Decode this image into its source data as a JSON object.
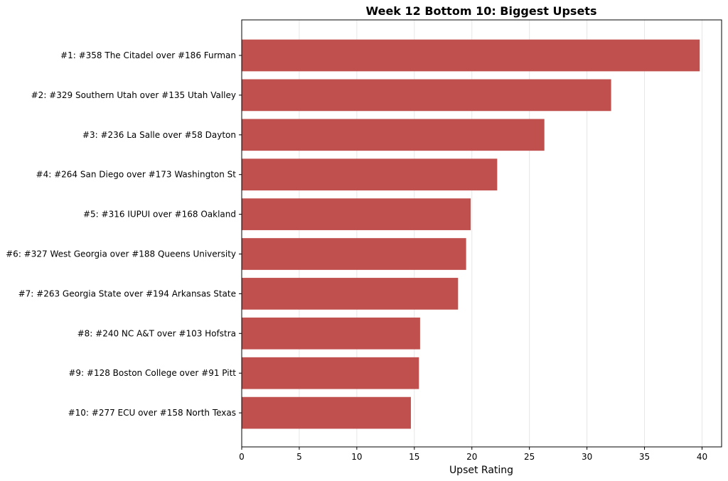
{
  "chart_data": {
    "type": "bar",
    "orientation": "horizontal",
    "title": "Week 12 Bottom 10: Biggest Upsets",
    "xlabel": "Upset Rating",
    "ylabel": "",
    "categories": [
      "#1: #358 The Citadel over #186 Furman",
      "#2: #329 Southern Utah over #135 Utah Valley",
      "#3: #236 La Salle over #58 Dayton",
      "#4: #264 San Diego over #173 Washington St",
      "#5: #316 IUPUI over #168 Oakland",
      "#6: #327 West Georgia over #188 Queens University",
      "#7: #263 Georgia State over #194 Arkansas State",
      "#8: #240 NC A&T over #103 Hofstra",
      "#9: #128 Boston College over #91 Pitt",
      "#10: #277 ECU over #158 North Texas"
    ],
    "values": [
      39.8,
      32.1,
      26.3,
      22.2,
      19.9,
      19.5,
      18.8,
      15.5,
      15.4,
      14.7
    ],
    "xlim": [
      0,
      41.7
    ],
    "xticks": [
      "0",
      "5",
      "10",
      "15",
      "20",
      "25",
      "30",
      "35",
      "40"
    ],
    "grid": "vertical",
    "bar_color": "#c0504d"
  }
}
